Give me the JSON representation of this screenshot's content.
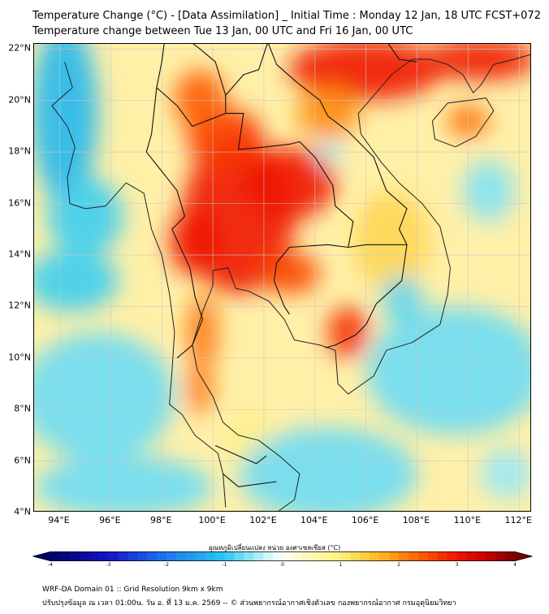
{
  "title_line1": "Temperature Change (°C) - [Data Assimilation] _ Initial Time : Monday 12 Jan, 18 UTC FCST+072",
  "title_line2": "Temperature change between Tue 13 Jan, 00 UTC and Fri 16 Jan, 00 UTC",
  "map": {
    "lon_range": [
      93,
      112.5
    ],
    "lat_range": [
      4,
      22.2
    ],
    "lat_labels": [
      {
        "value": 22,
        "text": "22°N"
      },
      {
        "value": 20,
        "text": "20°N"
      },
      {
        "value": 18,
        "text": "18°N"
      },
      {
        "value": 16,
        "text": "16°N"
      },
      {
        "value": 14,
        "text": "14°N"
      },
      {
        "value": 12,
        "text": "12°N"
      },
      {
        "value": 10,
        "text": "10°N"
      },
      {
        "value": 8,
        "text": "8°N"
      },
      {
        "value": 6,
        "text": "6°N"
      },
      {
        "value": 4,
        "text": "4°N"
      }
    ],
    "lon_labels": [
      {
        "value": 94,
        "text": "94°E"
      },
      {
        "value": 96,
        "text": "96°E"
      },
      {
        "value": 98,
        "text": "98°E"
      },
      {
        "value": 100,
        "text": "100°E"
      },
      {
        "value": 102,
        "text": "102°E"
      },
      {
        "value": 104,
        "text": "104°E"
      },
      {
        "value": 106,
        "text": "106°E"
      },
      {
        "value": 108,
        "text": "108°E"
      },
      {
        "value": 110,
        "text": "110°E"
      },
      {
        "value": 112,
        "text": "112°E"
      }
    ],
    "grid": true,
    "background_color": "#fff0a8",
    "field_blobs": [
      {
        "lon": 101.0,
        "lat": 15.5,
        "rx": 2.2,
        "ry": 3.0,
        "value": 3.0
      },
      {
        "lon": 103.0,
        "lat": 16.8,
        "rx": 1.8,
        "ry": 1.4,
        "value": 3.0
      },
      {
        "lon": 100.5,
        "lat": 18.5,
        "rx": 1.5,
        "ry": 1.2,
        "value": 2.7
      },
      {
        "lon": 99.3,
        "lat": 14.5,
        "rx": 1.0,
        "ry": 1.3,
        "value": 3.0
      },
      {
        "lon": 103.0,
        "lat": 13.3,
        "rx": 1.2,
        "ry": 0.8,
        "value": 2.6
      },
      {
        "lon": 105.3,
        "lat": 11.0,
        "rx": 0.8,
        "ry": 1.0,
        "value": 2.8
      },
      {
        "lon": 99.5,
        "lat": 20.0,
        "rx": 1.0,
        "ry": 1.2,
        "value": 2.4
      },
      {
        "lon": 99.6,
        "lat": 11.0,
        "rx": 0.6,
        "ry": 1.5,
        "value": 2.2
      },
      {
        "lon": 99.5,
        "lat": 8.8,
        "rx": 0.5,
        "ry": 1.0,
        "value": 2.2
      },
      {
        "lon": 106.0,
        "lat": 21.2,
        "rx": 3.0,
        "ry": 1.2,
        "value": 3.0
      },
      {
        "lon": 110.5,
        "lat": 21.6,
        "rx": 2.2,
        "ry": 0.8,
        "value": 3.0
      },
      {
        "lon": 110.0,
        "lat": 19.2,
        "rx": 0.8,
        "ry": 0.6,
        "value": 2.3
      },
      {
        "lon": 104.5,
        "lat": 19.5,
        "rx": 1.2,
        "ry": 1.0,
        "value": 2.0
      },
      {
        "lon": 107.0,
        "lat": 14.5,
        "rx": 1.5,
        "ry": 2.0,
        "value": 1.3
      },
      {
        "lon": 101.5,
        "lat": 6.5,
        "rx": 1.0,
        "ry": 1.5,
        "value": 0.9
      },
      {
        "lon": 94.2,
        "lat": 19.5,
        "rx": 1.3,
        "ry": 3.5,
        "value": -1.2
      },
      {
        "lon": 95.0,
        "lat": 15.5,
        "rx": 1.5,
        "ry": 1.5,
        "value": -0.9
      },
      {
        "lon": 94.5,
        "lat": 13.0,
        "rx": 1.8,
        "ry": 1.2,
        "value": -0.9
      },
      {
        "lon": 95.5,
        "lat": 8.5,
        "rx": 3.0,
        "ry": 2.5,
        "value": -0.7
      },
      {
        "lon": 96.5,
        "lat": 5.0,
        "rx": 3.5,
        "ry": 1.2,
        "value": -0.7
      },
      {
        "lon": 104.5,
        "lat": 5.5,
        "rx": 3.5,
        "ry": 1.8,
        "value": -0.7
      },
      {
        "lon": 109.5,
        "lat": 9.5,
        "rx": 3.5,
        "ry": 2.5,
        "value": -0.7
      },
      {
        "lon": 107.4,
        "lat": 12.3,
        "rx": 0.8,
        "ry": 0.9,
        "value": -0.8
      },
      {
        "lon": 110.8,
        "lat": 16.5,
        "rx": 1.0,
        "ry": 1.2,
        "value": -0.6
      },
      {
        "lon": 111.5,
        "lat": 5.5,
        "rx": 1.0,
        "ry": 1.0,
        "value": -0.5
      },
      {
        "lon": 104.6,
        "lat": 18.0,
        "rx": 0.4,
        "ry": 0.5,
        "value": -0.5
      }
    ],
    "coastlines": [
      [
        [
          94.2,
          21.5
        ],
        [
          94.5,
          20.5
        ],
        [
          93.7,
          19.8
        ],
        [
          94.3,
          19.0
        ],
        [
          94.6,
          18.2
        ],
        [
          94.3,
          17.0
        ],
        [
          94.4,
          16.0
        ],
        [
          95.0,
          15.8
        ],
        [
          95.8,
          15.9
        ],
        [
          96.6,
          16.8
        ],
        [
          97.3,
          16.4
        ],
        [
          97.6,
          15.0
        ],
        [
          98.0,
          14.0
        ],
        [
          98.3,
          12.5
        ],
        [
          98.5,
          11.0
        ],
        [
          98.4,
          9.5
        ],
        [
          98.3,
          8.2
        ],
        [
          98.8,
          7.8
        ],
        [
          99.3,
          7.0
        ],
        [
          100.2,
          6.3
        ],
        [
          100.4,
          5.5
        ],
        [
          100.5,
          4.2
        ]
      ],
      [
        [
          102.5,
          4.0
        ],
        [
          103.2,
          4.5
        ],
        [
          103.4,
          5.5
        ],
        [
          102.6,
          6.2
        ],
        [
          101.8,
          6.8
        ],
        [
          101.0,
          7.0
        ],
        [
          100.4,
          7.5
        ],
        [
          100.0,
          8.5
        ],
        [
          99.4,
          9.5
        ],
        [
          99.2,
          10.5
        ],
        [
          99.6,
          11.8
        ],
        [
          100.0,
          12.8
        ],
        [
          100.0,
          13.4
        ],
        [
          100.6,
          13.5
        ],
        [
          100.9,
          12.7
        ],
        [
          101.4,
          12.6
        ],
        [
          102.2,
          12.2
        ],
        [
          102.8,
          11.5
        ],
        [
          103.2,
          10.7
        ],
        [
          104.2,
          10.5
        ],
        [
          104.8,
          10.3
        ],
        [
          104.9,
          9.0
        ],
        [
          105.3,
          8.6
        ],
        [
          106.3,
          9.3
        ],
        [
          106.8,
          10.3
        ],
        [
          107.8,
          10.6
        ],
        [
          108.9,
          11.3
        ],
        [
          109.2,
          12.5
        ],
        [
          109.3,
          13.5
        ],
        [
          108.9,
          15.1
        ],
        [
          108.2,
          16.0
        ],
        [
          107.3,
          16.8
        ],
        [
          106.6,
          17.6
        ],
        [
          105.8,
          18.7
        ],
        [
          105.7,
          19.5
        ],
        [
          106.4,
          20.3
        ],
        [
          107.0,
          21.0
        ],
        [
          107.8,
          21.6
        ],
        [
          108.5,
          21.6
        ],
        [
          109.2,
          21.4
        ],
        [
          109.8,
          21.0
        ],
        [
          110.2,
          20.3
        ],
        [
          110.5,
          20.6
        ],
        [
          111.0,
          21.4
        ],
        [
          111.8,
          21.6
        ],
        [
          112.5,
          21.8
        ]
      ],
      [
        [
          108.6,
          19.2
        ],
        [
          108.7,
          18.5
        ],
        [
          109.5,
          18.2
        ],
        [
          110.3,
          18.6
        ],
        [
          111.0,
          19.6
        ],
        [
          110.7,
          20.1
        ],
        [
          110.0,
          20.0
        ],
        [
          109.2,
          19.9
        ],
        [
          108.6,
          19.2
        ]
      ]
    ],
    "borders": [
      [
        [
          97.8,
          28.0
        ],
        [
          98.5,
          24.0
        ],
        [
          98.2,
          23.0
        ],
        [
          99.5,
          22.0
        ],
        [
          100.1,
          21.5
        ],
        [
          100.5,
          20.2
        ],
        [
          101.2,
          21.0
        ],
        [
          101.8,
          21.2
        ],
        [
          102.2,
          22.4
        ],
        [
          103.0,
          22.4
        ],
        [
          104.2,
          22.8
        ],
        [
          105.3,
          23.2
        ],
        [
          106.6,
          22.6
        ],
        [
          107.3,
          21.6
        ],
        [
          108.0,
          21.5
        ]
      ],
      [
        [
          98.2,
          23.0
        ],
        [
          98.0,
          21.5
        ],
        [
          97.8,
          20.5
        ],
        [
          98.6,
          19.8
        ],
        [
          99.2,
          19.0
        ],
        [
          100.5,
          19.5
        ],
        [
          100.5,
          20.2
        ]
      ],
      [
        [
          97.8,
          20.5
        ],
        [
          97.6,
          18.7
        ],
        [
          97.4,
          18.0
        ],
        [
          97.8,
          17.5
        ],
        [
          98.6,
          16.5
        ],
        [
          98.9,
          15.5
        ],
        [
          98.4,
          15.0
        ],
        [
          99.1,
          13.5
        ],
        [
          99.3,
          12.4
        ],
        [
          99.6,
          11.5
        ],
        [
          99.2,
          10.5
        ],
        [
          98.6,
          10.0
        ]
      ],
      [
        [
          100.5,
          19.5
        ],
        [
          101.2,
          19.5
        ],
        [
          101.0,
          18.1
        ],
        [
          102.1,
          18.2
        ],
        [
          103.0,
          18.3
        ],
        [
          103.4,
          18.4
        ],
        [
          104.0,
          17.8
        ],
        [
          104.7,
          16.7
        ],
        [
          104.8,
          15.9
        ],
        [
          105.5,
          15.3
        ],
        [
          105.3,
          14.3
        ]
      ],
      [
        [
          105.3,
          14.3
        ],
        [
          104.5,
          14.4
        ],
        [
          103.0,
          14.3
        ],
        [
          102.5,
          13.7
        ],
        [
          102.4,
          13.0
        ],
        [
          102.8,
          12.0
        ],
        [
          103.0,
          11.7
        ]
      ],
      [
        [
          102.1,
          22.4
        ],
        [
          102.5,
          21.4
        ],
        [
          103.3,
          20.7
        ],
        [
          104.2,
          20.0
        ],
        [
          104.5,
          19.4
        ],
        [
          105.3,
          18.8
        ],
        [
          106.3,
          17.8
        ],
        [
          106.8,
          16.5
        ],
        [
          107.6,
          15.8
        ],
        [
          107.3,
          15.0
        ],
        [
          107.6,
          14.4
        ],
        [
          107.4,
          13.0
        ],
        [
          106.4,
          12.1
        ],
        [
          106.0,
          11.3
        ],
        [
          105.6,
          10.9
        ],
        [
          104.8,
          10.5
        ],
        [
          104.4,
          10.4
        ]
      ],
      [
        [
          105.3,
          14.3
        ],
        [
          106.0,
          14.4
        ],
        [
          106.9,
          14.4
        ],
        [
          107.6,
          14.4
        ]
      ],
      [
        [
          100.1,
          6.6
        ],
        [
          101.0,
          6.2
        ],
        [
          101.7,
          5.9
        ],
        [
          102.1,
          6.2
        ]
      ],
      [
        [
          100.4,
          5.5
        ],
        [
          101.0,
          5.0
        ],
        [
          102.5,
          5.2
        ]
      ]
    ]
  },
  "colorbar": {
    "title": "อุณหภูมิเปลี่ยนแปลง หน่วย องศาเซลเซียส (°C)",
    "min": -4,
    "max": 4,
    "tick_labels": [
      {
        "value": -4,
        "text": "-4"
      },
      {
        "value": -3,
        "text": "-3"
      },
      {
        "value": -2,
        "text": "-2"
      },
      {
        "value": -1,
        "text": "-1"
      },
      {
        "value": 0,
        "text": "0"
      },
      {
        "value": 1,
        "text": "1"
      },
      {
        "value": 2,
        "text": "2"
      },
      {
        "value": 3,
        "text": "3"
      },
      {
        "value": 4,
        "text": "4"
      }
    ],
    "stops": [
      {
        "value": -4,
        "color": "#000064"
      },
      {
        "value": -3,
        "color": "#1414c8"
      },
      {
        "value": -2,
        "color": "#1e78f0"
      },
      {
        "value": -1,
        "color": "#28c8f0"
      },
      {
        "value": -0.3,
        "color": "#c8f5fa"
      },
      {
        "value": 0,
        "color": "#ffffff"
      },
      {
        "value": 0.3,
        "color": "#fffac8"
      },
      {
        "value": 1,
        "color": "#fff07d"
      },
      {
        "value": 1.7,
        "color": "#ffb41e"
      },
      {
        "value": 2.4,
        "color": "#ff5a00"
      },
      {
        "value": 3,
        "color": "#f01400"
      },
      {
        "value": 3.5,
        "color": "#c80000"
      },
      {
        "value": 4,
        "color": "#780000"
      }
    ]
  },
  "footer_line1": "WRF-DA Domain 01 :: Grid Resolution 9km x 9km",
  "footer_line2": "ปรับปรุงข้อมูล ณ เวลา 01:00น. วัน อ. ที่ 13 ม.ค. 2569 -- © ส่วนพยากรณ์อากาศเชิงตัวเลข กองพยากรณ์อากาศ กรมอุตุนิยมวิทยา"
}
